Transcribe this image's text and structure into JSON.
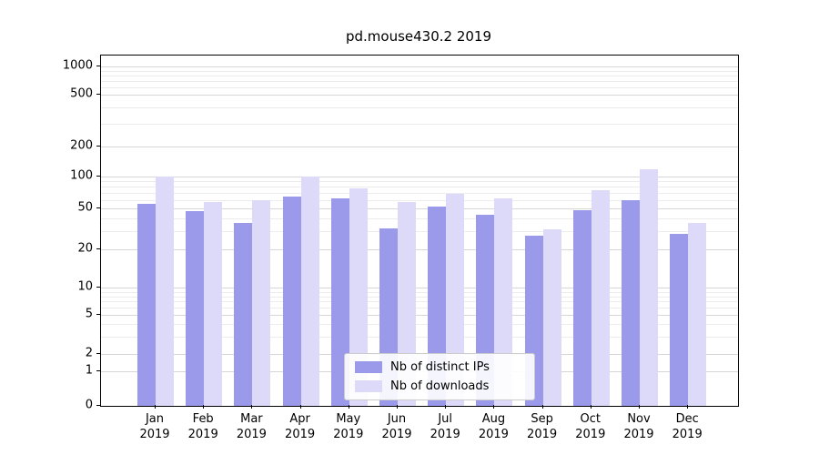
{
  "chart_data": {
    "type": "bar",
    "title": "pd.mouse430.2 2019",
    "categories": [
      "Jan 2019",
      "Feb 2019",
      "Mar 2019",
      "Apr 2019",
      "May 2019",
      "Jun 2019",
      "Jul 2019",
      "Aug 2019",
      "Sep 2019",
      "Oct 2019",
      "Nov 2019",
      "Dec 2019"
    ],
    "series": [
      {
        "name": "Nb of distinct IPs",
        "color": "#9b99ea",
        "values": [
          55,
          47,
          36,
          65,
          62,
          32,
          52,
          43,
          27,
          48,
          60,
          28
        ]
      },
      {
        "name": "Nb of downloads",
        "color": "#dcdaf8",
        "values": [
          100,
          57,
          60,
          100,
          78,
          57,
          68,
          62,
          31,
          75,
          118,
          36
        ]
      }
    ],
    "yscale": "symlog",
    "yticks": [
      0,
      1,
      2,
      5,
      10,
      20,
      50,
      100,
      200,
      500,
      1000
    ],
    "ylim": [
      0,
      1280
    ],
    "xlabel": "",
    "ylabel": "",
    "grid": true,
    "legend_position": "lower center"
  }
}
